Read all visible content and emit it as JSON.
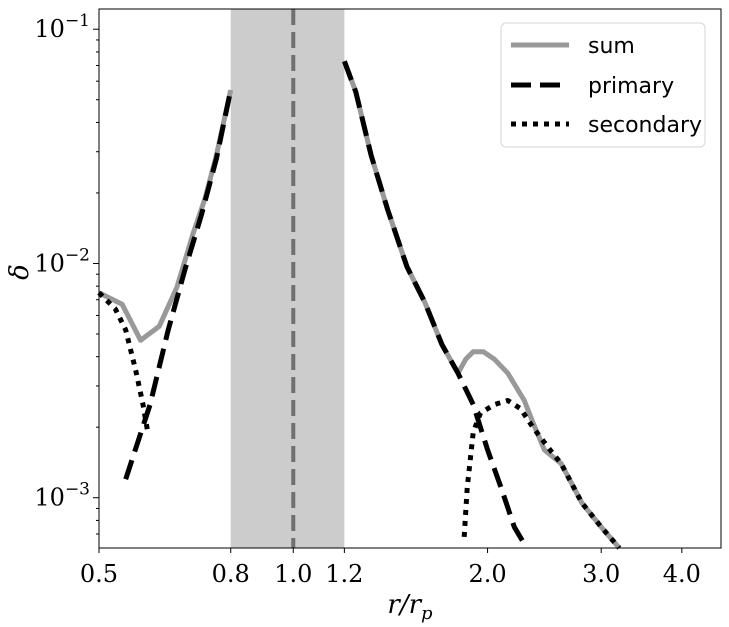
{
  "chart_data": {
    "type": "line",
    "xlabel": "r/r_p",
    "ylabel": "δ",
    "x_scale": "log",
    "y_scale": "log",
    "xlim": [
      0.5,
      4.6
    ],
    "ylim": [
      0.00061,
      0.122
    ],
    "x_ticks": [
      {
        "value": 0.5,
        "label": "0.5"
      },
      {
        "value": 0.8,
        "label": "0.8"
      },
      {
        "value": 1.0,
        "label": "1.0"
      },
      {
        "value": 1.2,
        "label": "1.2"
      },
      {
        "value": 2.0,
        "label": "2.0"
      },
      {
        "value": 3.0,
        "label": "3.0"
      },
      {
        "value": 4.0,
        "label": "4.0"
      }
    ],
    "y_ticks": [
      {
        "value": 0.1,
        "base": "10",
        "exp": "−1"
      },
      {
        "value": 0.01,
        "base": "10",
        "exp": "−2"
      },
      {
        "value": 0.001,
        "base": "10",
        "exp": "−3"
      }
    ],
    "shaded_region": {
      "x": [
        0.8,
        1.2
      ],
      "color": "#cccccc"
    },
    "vline": {
      "x": 1.0,
      "color": "#707070",
      "style": "dashed"
    },
    "legend": {
      "placement": "top-right",
      "entries": [
        "sum",
        "primary",
        "secondary"
      ]
    },
    "series": [
      {
        "name": "sum",
        "color": "#999999",
        "style": "solid",
        "segments": [
          [
            [
              0.5,
              0.0075
            ],
            [
              0.543,
              0.0067
            ],
            [
              0.58,
              0.0047
            ],
            [
              0.62,
              0.0054
            ],
            [
              0.66,
              0.0079
            ],
            [
              0.7,
              0.0135
            ],
            [
              0.73,
              0.019
            ],
            [
              0.76,
              0.029
            ],
            [
              0.8,
              0.055
            ]
          ],
          [
            [
              1.2,
              0.073
            ],
            [
              1.25,
              0.054
            ],
            [
              1.32,
              0.029
            ],
            [
              1.4,
              0.017
            ],
            [
              1.5,
              0.0097
            ],
            [
              1.6,
              0.0068
            ],
            [
              1.7,
              0.0045
            ],
            [
              1.8,
              0.0034
            ],
            [
              1.85,
              0.0039
            ],
            [
              1.9,
              0.0042
            ],
            [
              1.97,
              0.0042
            ],
            [
              2.05,
              0.0039
            ],
            [
              2.15,
              0.0034
            ],
            [
              2.28,
              0.0026
            ],
            [
              2.35,
              0.0021
            ],
            [
              2.45,
              0.0016
            ],
            [
              2.6,
              0.0014
            ],
            [
              2.8,
              0.00095
            ],
            [
              3.0,
              0.00075
            ],
            [
              3.2,
              0.00061
            ]
          ]
        ]
      },
      {
        "name": "primary",
        "color": "#000000",
        "style": "dashed",
        "segments": [
          [
            [
              0.55,
              0.0012
            ],
            [
              0.6,
              0.0025
            ],
            [
              0.64,
              0.0052
            ],
            [
              0.68,
              0.0095
            ],
            [
              0.72,
              0.016
            ],
            [
              0.76,
              0.028
            ],
            [
              0.8,
              0.055
            ]
          ],
          [
            [
              1.2,
              0.073
            ],
            [
              1.25,
              0.054
            ],
            [
              1.32,
              0.029
            ],
            [
              1.4,
              0.017
            ],
            [
              1.5,
              0.0097
            ],
            [
              1.6,
              0.0068
            ],
            [
              1.7,
              0.0045
            ],
            [
              1.8,
              0.0034
            ],
            [
              1.9,
              0.0025
            ],
            [
              2.0,
              0.0016
            ],
            [
              2.1,
              0.0011
            ],
            [
              2.2,
              0.00075
            ],
            [
              2.3,
              0.00061
            ]
          ]
        ]
      },
      {
        "name": "secondary",
        "color": "#000000",
        "style": "dotted",
        "segments": [
          [
            [
              0.5,
              0.0075
            ],
            [
              0.53,
              0.0064
            ],
            [
              0.55,
              0.0052
            ],
            [
              0.57,
              0.0035
            ],
            [
              0.585,
              0.0025
            ],
            [
              0.595,
              0.0019
            ]
          ],
          [
            [
              1.84,
              0.00068
            ],
            [
              1.86,
              0.0011
            ],
            [
              1.9,
              0.0019
            ],
            [
              1.95,
              0.0023
            ],
            [
              2.05,
              0.0025
            ],
            [
              2.15,
              0.0026
            ],
            [
              2.25,
              0.0024
            ],
            [
              2.35,
              0.002
            ],
            [
              2.5,
              0.0016
            ],
            [
              2.6,
              0.0014
            ],
            [
              2.8,
              0.00095
            ],
            [
              3.0,
              0.00075
            ],
            [
              3.2,
              0.00061
            ]
          ]
        ]
      }
    ]
  }
}
